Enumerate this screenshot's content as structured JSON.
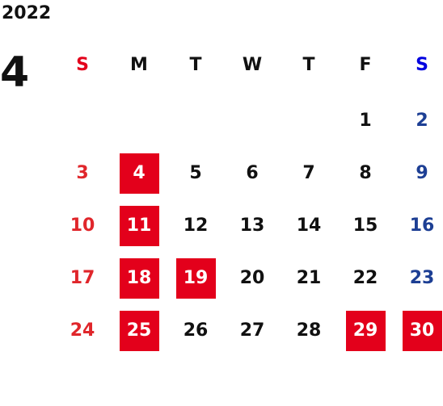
{
  "calendar": {
    "year": "2022",
    "month": "4",
    "weekdays": [
      "S",
      "M",
      "T",
      "W",
      "T",
      "F",
      "S"
    ],
    "weekday_colors": [
      "#e3001b",
      "#111111",
      "#111111",
      "#111111",
      "#111111",
      "#111111",
      "#0000e0"
    ],
    "day_colors": [
      "#e0262b",
      "#111111",
      "#111111",
      "#111111",
      "#111111",
      "#111111",
      "#1d3f94"
    ],
    "highlight_color": "#e3001b",
    "highlighted": [
      4,
      11,
      18,
      19,
      25,
      29,
      30
    ],
    "weeks": [
      [
        null,
        null,
        null,
        null,
        null,
        1,
        2
      ],
      [
        3,
        4,
        5,
        6,
        7,
        8,
        9
      ],
      [
        10,
        11,
        12,
        13,
        14,
        15,
        16
      ],
      [
        17,
        18,
        19,
        20,
        21,
        22,
        23
      ],
      [
        24,
        25,
        26,
        27,
        28,
        29,
        30
      ]
    ]
  }
}
